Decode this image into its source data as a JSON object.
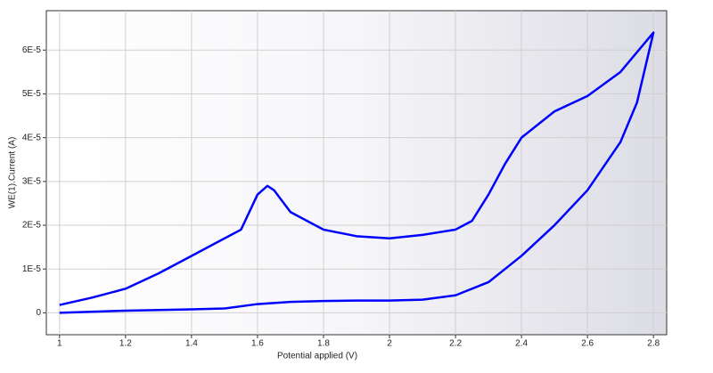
{
  "chart_data": {
    "type": "line",
    "x_label": "Potential applied (V)",
    "y_label": "WE(1).Current (A)",
    "x": [
      1.0,
      1.2,
      1.4,
      1.5,
      1.6,
      1.7,
      1.8,
      1.9,
      2.0,
      2.1,
      2.2,
      2.3,
      2.4,
      2.5,
      2.6,
      2.7,
      2.75,
      2.8,
      2.7,
      2.6,
      2.5,
      2.4,
      2.35,
      2.3,
      2.25,
      2.2,
      2.1,
      2.0,
      1.9,
      1.8,
      1.7,
      1.65,
      1.63,
      1.6,
      1.55,
      1.5,
      1.4,
      1.3,
      1.2,
      1.1,
      1.0
    ],
    "series": [
      {
        "color": "#0000ff",
        "values": [
          0,
          5e-07,
          8e-07,
          1e-06,
          2e-06,
          2.5e-06,
          2.7e-06,
          2.8e-06,
          2.8e-06,
          3e-06,
          4e-06,
          7e-06,
          1.3e-05,
          2e-05,
          2.8e-05,
          3.9e-05,
          4.8e-05,
          6.4e-05,
          5.5e-05,
          4.95e-05,
          4.6e-05,
          4e-05,
          3.4e-05,
          2.7e-05,
          2.1e-05,
          1.9e-05,
          1.78e-05,
          1.7e-05,
          1.75e-05,
          1.9e-05,
          2.3e-05,
          2.8e-05,
          2.9e-05,
          2.7e-05,
          1.9e-05,
          1.7e-05,
          1.3e-05,
          9e-06,
          5.5e-06,
          3.5e-06,
          1.8e-06
        ]
      }
    ],
    "xlim": [
      0.96,
      2.84
    ],
    "xticks": [
      1,
      1.2,
      1.4,
      1.6,
      1.8,
      2,
      2.2,
      2.4,
      2.6,
      2.8
    ],
    "ylim": [
      -5e-06,
      6.9e-05
    ],
    "yticks": [
      0,
      {
        "value": 1e-05,
        "label": "1E-5"
      },
      {
        "value": 2e-05,
        "label": "2E-5"
      },
      {
        "value": 3e-05,
        "label": "3E-5"
      },
      {
        "value": 4e-05,
        "label": "4E-5"
      },
      {
        "value": 5e-05,
        "label": "5E-5"
      },
      {
        "value": 6e-05,
        "label": "6E-5"
      }
    ],
    "grid": true
  }
}
